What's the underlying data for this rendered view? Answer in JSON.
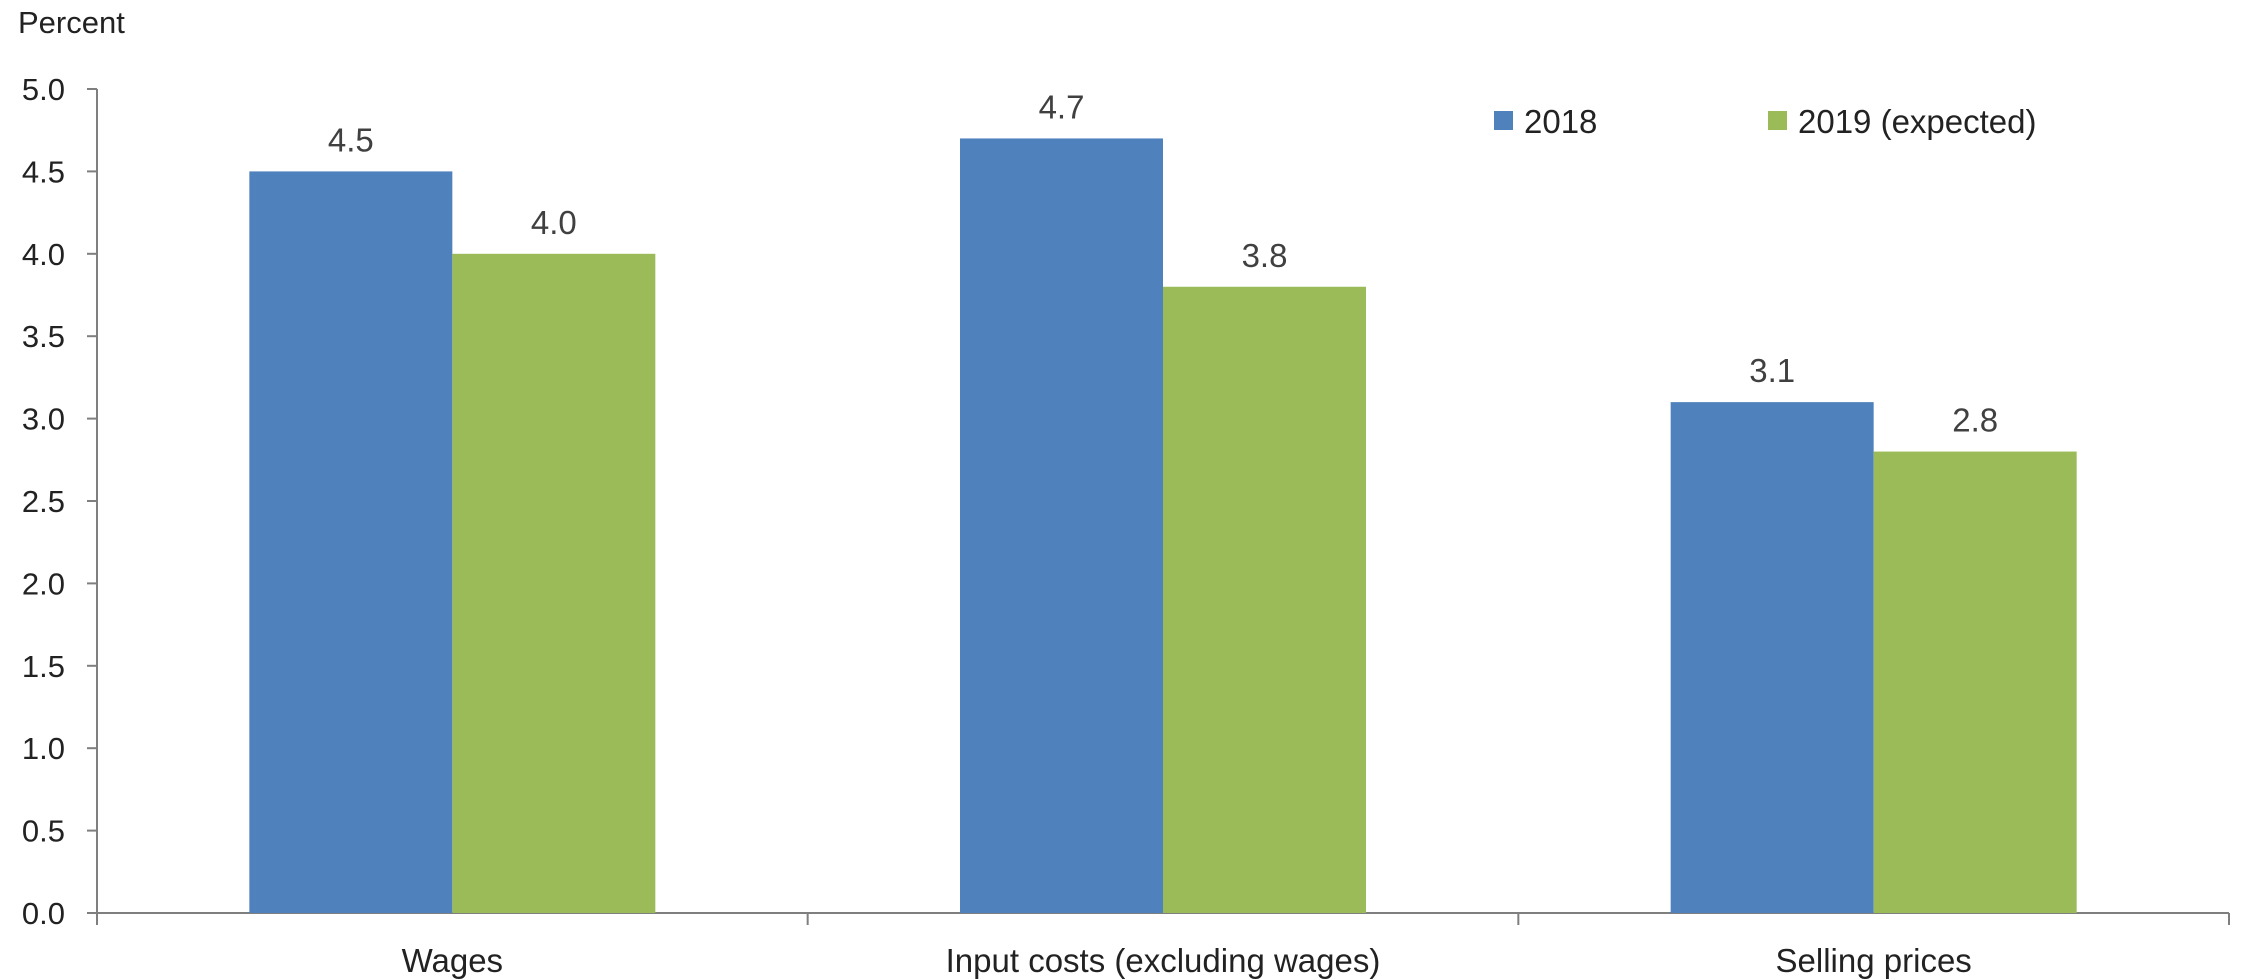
{
  "chart_data": {
    "type": "bar",
    "title": "",
    "ylabel": "Percent",
    "xlabel": "",
    "categories": [
      "Wages",
      "Input costs (excluding wages)",
      "Selling prices"
    ],
    "series": [
      {
        "name": "2018",
        "values": [
          4.5,
          4.7,
          3.1
        ],
        "color": "#4F81BD"
      },
      {
        "name": "2019 (expected)",
        "values": [
          4.0,
          3.8,
          2.8
        ],
        "color": "#9BBB59"
      }
    ],
    "data_labels": [
      [
        "4.5",
        "4.7",
        "3.1"
      ],
      [
        "4.0",
        "3.8",
        "2.8"
      ]
    ],
    "ylim": [
      0,
      5.0
    ],
    "yticks": [
      "0.0",
      "0.5",
      "1.0",
      "1.5",
      "2.0",
      "2.5",
      "3.0",
      "3.5",
      "4.0",
      "4.5",
      "5.0"
    ],
    "grid": false,
    "legend_position": "top-right"
  }
}
